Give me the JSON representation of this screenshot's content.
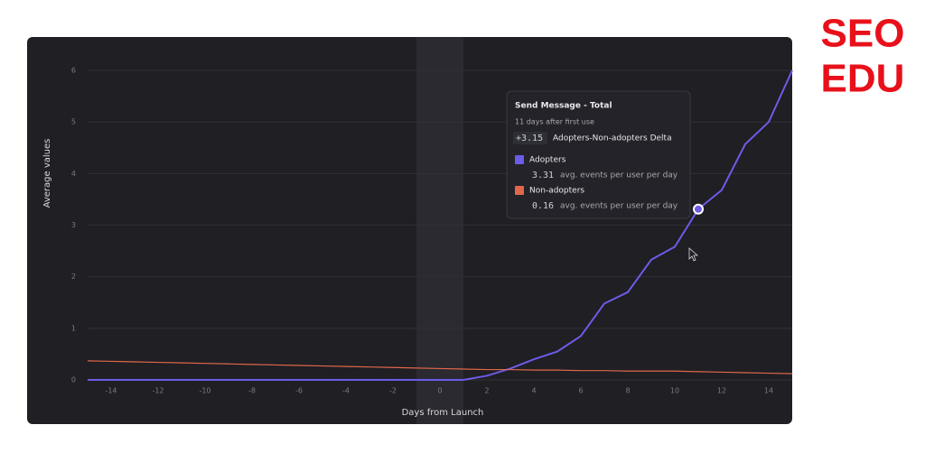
{
  "chart_data": {
    "type": "line",
    "xlabel": "Days from Launch",
    "ylabel": "Average values",
    "x": [
      -15,
      -14,
      -13,
      -12,
      -11,
      -10,
      -9,
      -8,
      -7,
      -6,
      -5,
      -4,
      -3,
      -2,
      -1,
      0,
      1,
      2,
      3,
      4,
      5,
      6,
      7,
      8,
      9,
      10,
      11,
      12,
      13,
      14,
      15
    ],
    "series": [
      {
        "name": "Adopters",
        "color": "#6c5ce7",
        "values": [
          0,
          0,
          0,
          0,
          0,
          0,
          0,
          0,
          0,
          0,
          0,
          0,
          0,
          0,
          0,
          0,
          0,
          0.08,
          0.22,
          0.4,
          0.55,
          0.85,
          1.48,
          1.7,
          2.33,
          2.58,
          3.31,
          3.68,
          4.57,
          5.0,
          6.0
        ]
      },
      {
        "name": "Non-adopters",
        "color": "#e0674a",
        "values": [
          0.37,
          0.36,
          0.35,
          0.34,
          0.33,
          0.32,
          0.31,
          0.3,
          0.29,
          0.28,
          0.27,
          0.26,
          0.25,
          0.24,
          0.23,
          0.22,
          0.21,
          0.2,
          0.2,
          0.19,
          0.19,
          0.18,
          0.18,
          0.17,
          0.17,
          0.17,
          0.16,
          0.15,
          0.14,
          0.13,
          0.12
        ]
      }
    ],
    "xlim": [
      -15,
      15
    ],
    "xticks": [
      -14,
      -12,
      -10,
      -8,
      -6,
      -4,
      -2,
      0,
      2,
      4,
      6,
      8,
      10,
      12,
      14
    ],
    "ylim": [
      0,
      6
    ],
    "yticks": [
      0,
      1,
      2,
      3,
      4,
      5,
      6
    ],
    "grid": true,
    "highlight_range": [
      -1,
      1
    ],
    "hover_x": 11
  },
  "tooltip": {
    "title": "Send Message - Total",
    "subtitle": "11 days after first use",
    "delta": "+3.15",
    "delta_label": "Adopters-Non-adopters Delta",
    "items": [
      {
        "name": "Adopters",
        "value": "3.31",
        "unit": "avg. events per user per day"
      },
      {
        "name": "Non-adopters",
        "value": "0.16",
        "unit": "avg. events per user per day"
      }
    ]
  },
  "logo": {
    "line1": "SEO",
    "line2": "EDU"
  }
}
